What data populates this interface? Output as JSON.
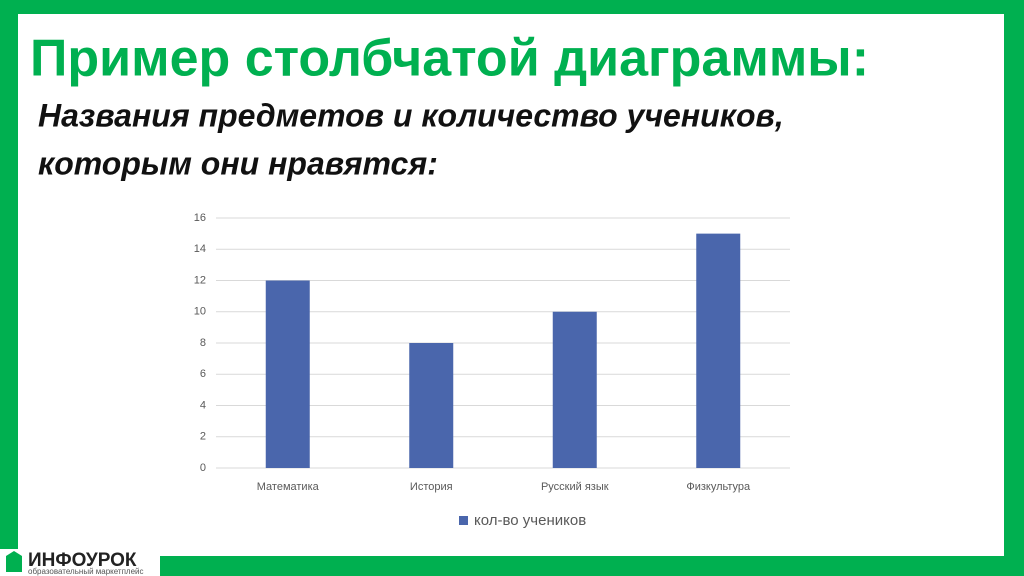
{
  "slide": {
    "title": "Пример столбчатой диаграммы:",
    "subtitle_lines": [
      "Названия предметов и количество учеников,",
      "которым они нравятся:"
    ]
  },
  "chart_data": {
    "type": "bar",
    "categories": [
      "Математика",
      "История",
      "Русский язык",
      "Физкультура"
    ],
    "series": [
      {
        "name": "кол-во учеников",
        "color": "#4a66ac",
        "values": [
          12,
          8,
          10,
          15
        ]
      }
    ],
    "ylim": [
      0,
      16
    ],
    "yticks": [
      0,
      2,
      4,
      6,
      8,
      10,
      12,
      14,
      16
    ],
    "grid": true,
    "legend": "bottom"
  },
  "footer": {
    "logo": "ИНФОУРОК",
    "tagline": "образовательный маркетплейс"
  }
}
